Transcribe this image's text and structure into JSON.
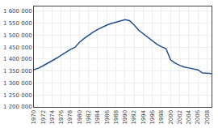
{
  "chart_data": {
    "type": "line",
    "x": [
      1970,
      1971,
      1972,
      1973,
      1974,
      1975,
      1976,
      1977,
      1978,
      1979,
      1980,
      1981,
      1982,
      1983,
      1984,
      1985,
      1986,
      1987,
      1988,
      1989,
      1990,
      1991,
      1992,
      1993,
      1994,
      1995,
      1996,
      1997,
      1998,
      1999,
      2000,
      2001,
      2002,
      2003,
      2004,
      2005,
      2006,
      2007,
      2008,
      2009
    ],
    "values": [
      1356000,
      1362000,
      1372000,
      1382000,
      1393000,
      1404000,
      1416000,
      1428000,
      1440000,
      1449000,
      1470000,
      1486000,
      1500000,
      1513000,
      1524000,
      1534000,
      1542000,
      1549000,
      1554000,
      1558000,
      1565000,
      1561000,
      1543000,
      1521000,
      1506000,
      1491000,
      1476000,
      1462000,
      1452000,
      1444000,
      1397000,
      1383000,
      1374000,
      1367000,
      1363000,
      1358000,
      1355000,
      1342000,
      1341000,
      1340000
    ],
    "color": "#1f4e8c",
    "xlim": [
      1970,
      2009
    ],
    "xticks": [
      1970,
      1972,
      1974,
      1976,
      1978,
      1980,
      1982,
      1984,
      1986,
      1988,
      1990,
      1992,
      1994,
      1996,
      1998,
      2000,
      2002,
      2004,
      2006,
      2008
    ],
    "ylim": [
      1200000,
      1620000
    ],
    "yticks": [
      {
        "value": 1200000,
        "label": "1 200 000"
      },
      {
        "value": 1250000,
        "label": "1 250 000"
      },
      {
        "value": 1300000,
        "label": "1 300 000"
      },
      {
        "value": 1350000,
        "label": "1 350 000"
      },
      {
        "value": 1400000,
        "label": "1 400 000"
      },
      {
        "value": 1450000,
        "label": "1 450 000"
      },
      {
        "value": 1500000,
        "label": "1 500 000"
      },
      {
        "value": 1550000,
        "label": "1 550 000"
      },
      {
        "value": 1600000,
        "label": "1 600 000"
      }
    ],
    "grid": true
  }
}
